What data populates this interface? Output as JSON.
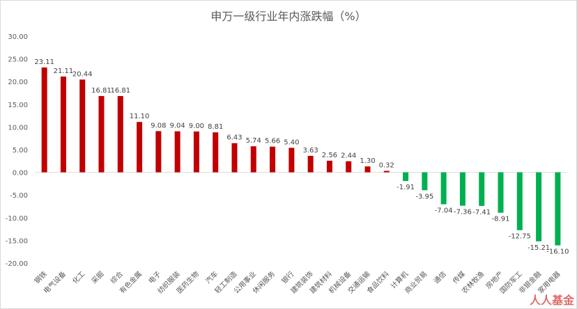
{
  "chart_data": {
    "type": "bar",
    "title": "申万一级行业年内涨跌幅（%）",
    "xlabel": "",
    "ylabel": "",
    "ylim": [
      -20,
      30
    ],
    "yticks": [
      "30.00",
      "25.00",
      "20.00",
      "15.00",
      "10.00",
      "5.00",
      "0.00",
      "-5.00",
      "-10.00",
      "-15.00",
      "-20.00"
    ],
    "grid": false,
    "legend": "none",
    "categories": [
      "钢铁",
      "电气设备",
      "化工",
      "采掘",
      "综合",
      "有色金属",
      "电子",
      "纺织服装",
      "医药生物",
      "汽车",
      "轻工制造",
      "公用事业",
      "休闲服务",
      "银行",
      "建筑装饰",
      "建筑材料",
      "机械设备",
      "交通运输",
      "食品饮料",
      "计算机",
      "商业贸易",
      "通信",
      "传媒",
      "农林牧渔",
      "房地产",
      "国防军工",
      "非银金融",
      "家用电器"
    ],
    "values": [
      23.11,
      21.11,
      20.44,
      16.81,
      16.81,
      11.1,
      9.08,
      9.04,
      9.0,
      8.81,
      6.43,
      5.74,
      5.66,
      5.4,
      3.63,
      2.56,
      2.44,
      1.3,
      0.32,
      -1.91,
      -3.95,
      -7.04,
      -7.36,
      -7.41,
      -8.91,
      -12.75,
      -15.21,
      -16.1
    ],
    "data_labels": [
      "23.11",
      "21.11",
      "20.44",
      "16.81",
      "16.81",
      "11.10",
      "9.08",
      "9.04",
      "9.00",
      "8.81",
      "6.43",
      "5.74",
      "5.66",
      "5.40",
      "3.63",
      "2.56",
      "2.44",
      "1.30",
      "0.32",
      "-1.91",
      "-3.95",
      "-7.04",
      "-7.36",
      "-7.41",
      "-8.91",
      "-12.75",
      "-15.21",
      "-16.10"
    ],
    "colors": {
      "positive": "#c00000",
      "negative": "#00b050"
    }
  },
  "watermark": "人人基金"
}
